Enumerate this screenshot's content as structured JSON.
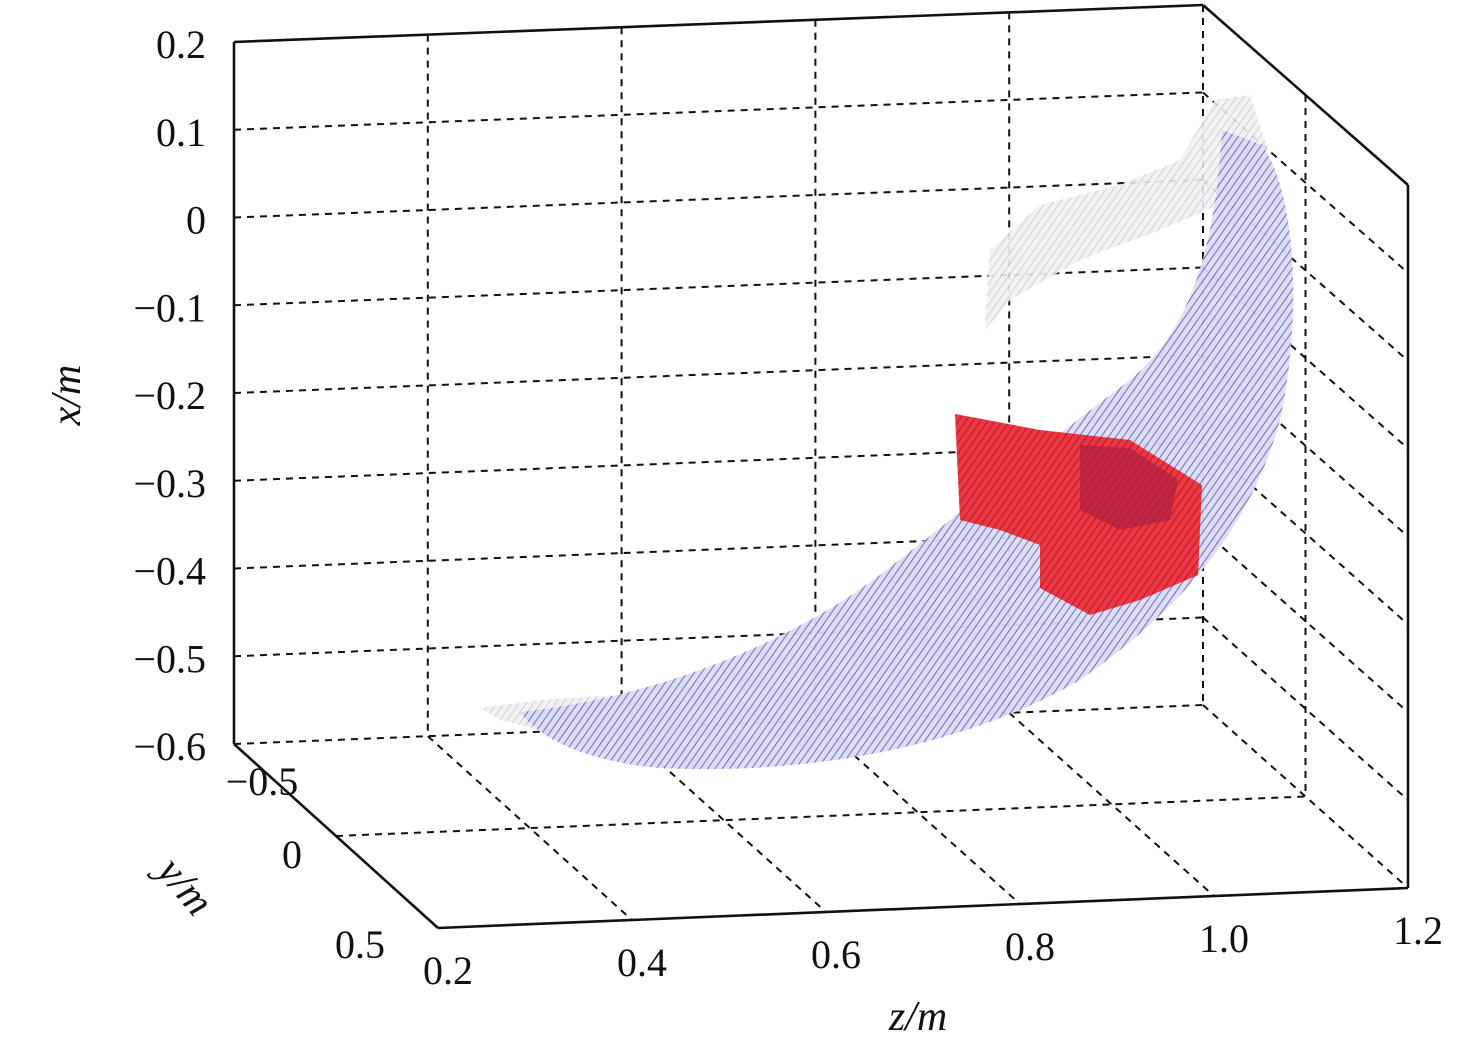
{
  "chart_data": {
    "type": "scatter",
    "title": "",
    "xlabel": "z/m",
    "ylabel": "y/m",
    "zlabel": "x/m",
    "axes": {
      "z": {
        "ticks": [
          "0.2",
          "0.4",
          "0.6",
          "0.8",
          "1.0",
          "1.2"
        ],
        "range": [
          0.2,
          1.2
        ]
      },
      "y": {
        "ticks": [
          "−0.5",
          "0",
          "0.5"
        ],
        "range": [
          -0.5,
          0.5
        ]
      },
      "x": {
        "ticks": [
          "0.2",
          "0.1",
          "0",
          "−0.1",
          "−0.2",
          "−0.3",
          "−0.4",
          "−0.5",
          "−0.6"
        ],
        "range": [
          -0.6,
          0.2
        ]
      }
    },
    "grid": true,
    "view": "3d",
    "series": [
      {
        "color": "#8f8fd6",
        "kind": "arc-band",
        "points": [
          {
            "z": 0.4,
            "x": -0.58
          },
          {
            "z": 0.6,
            "x": -0.57
          },
          {
            "z": 0.8,
            "x": -0.5
          },
          {
            "z": 0.95,
            "x": -0.4
          },
          {
            "z": 1.05,
            "x": -0.25
          },
          {
            "z": 1.08,
            "x": -0.05
          },
          {
            "z": 1.05,
            "x": 0.1
          }
        ]
      },
      {
        "color": "#e8202e",
        "kind": "region",
        "points": [
          {
            "z": 0.77,
            "x": -0.24
          },
          {
            "z": 0.88,
            "x": -0.26
          },
          {
            "z": 0.97,
            "x": -0.3
          },
          {
            "z": 0.98,
            "x": -0.41
          },
          {
            "z": 0.87,
            "x": -0.45
          },
          {
            "z": 0.84,
            "x": -0.38
          },
          {
            "z": 0.78,
            "x": -0.35
          }
        ]
      }
    ]
  }
}
